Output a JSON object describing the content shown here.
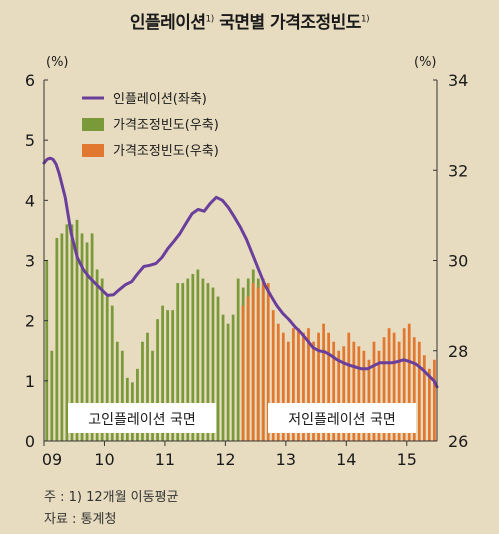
{
  "title": "인플레이션",
  "title_sup1": "1)",
  "title_part2": " 국면별 가격조정빈도",
  "title_sup2": "1)",
  "notes": [
    "주 : 1) 12개월 이동평균",
    "자료 : 통계청"
  ],
  "colors": {
    "line": "#6a3f9b",
    "bar_high": "#7a9a3a",
    "bar_low": "#e2782f",
    "background": "#e8dcc0",
    "box": "#ffffff"
  },
  "chart_data": {
    "type": "bar+line",
    "left_axis": {
      "unit": "(%)",
      "ylim": [
        0,
        6
      ],
      "ticks": [
        "0",
        "1",
        "2",
        "3",
        "4",
        "5",
        "6"
      ]
    },
    "right_axis": {
      "unit": "(%)",
      "ylim": [
        26,
        34
      ],
      "ticks": [
        "26",
        "28",
        "30",
        "32",
        "34"
      ]
    },
    "x_ticks": [
      "09",
      "10",
      "11",
      "12",
      "13",
      "14",
      "15"
    ],
    "x_range": [
      2009.0,
      2015.5
    ],
    "legend": [
      "인플레이션(좌축)",
      "가격조정빈도(우축)",
      "가격조정빈도(우축)"
    ],
    "regime_labels": [
      "고인플레이션 국면",
      "저인플레이션 국면"
    ],
    "regime_split": 2012.25,
    "bar_start": 2009.0,
    "bar_step": 0.0833,
    "freq_high": [
      30.0,
      28.0,
      30.5,
      30.6,
      30.8,
      30.8,
      30.9,
      30.6,
      30.4,
      30.6,
      29.8,
      29.6,
      29.2,
      29.0,
      28.2,
      28.0,
      27.4,
      27.3,
      27.6,
      28.2,
      28.4,
      28.0,
      28.7,
      29.0,
      28.9,
      28.9,
      29.5,
      29.5,
      29.6,
      29.7,
      29.8,
      29.6,
      29.5,
      29.4,
      29.2,
      28.8,
      28.6,
      28.8,
      29.6,
      29.4,
      29.6,
      29.8,
      29.6,
      29.4
    ],
    "freq_low": [
      29.0,
      29.2,
      29.5,
      29.4,
      29.6,
      29.5,
      28.9,
      28.6,
      28.4,
      28.2,
      28.5,
      28.5,
      28.4,
      28.5,
      28.2,
      28.4,
      28.6,
      28.4,
      28.2,
      28.0,
      28.1,
      28.4,
      28.2,
      28.1,
      28.0,
      27.8,
      28.2,
      28.0,
      28.3,
      28.5,
      28.4,
      28.2,
      28.5,
      28.6,
      28.3,
      28.2,
      27.9,
      27.6,
      27.8,
      27.5,
      27.4,
      27.6,
      27.2,
      27.8,
      27.6,
      27.4,
      27.5
    ],
    "inflation": {
      "x": [
        2009.0,
        2009.05,
        2009.1,
        2009.15,
        2009.2,
        2009.25,
        2009.35,
        2009.45,
        2009.55,
        2009.65,
        2009.75,
        2009.85,
        2009.95,
        2010.05,
        2010.15,
        2010.25,
        2010.35,
        2010.45,
        2010.55,
        2010.65,
        2010.75,
        2010.85,
        2010.95,
        2011.05,
        2011.15,
        2011.25,
        2011.35,
        2011.45,
        2011.55,
        2011.65,
        2011.75,
        2011.85,
        2011.95,
        2012.05,
        2012.15,
        2012.25,
        2012.35,
        2012.45,
        2012.55,
        2012.65,
        2012.75,
        2012.85,
        2012.95,
        2013.05,
        2013.15,
        2013.25,
        2013.35,
        2013.45,
        2013.55,
        2013.65,
        2013.75,
        2013.85,
        2013.95,
        2014.05,
        2014.15,
        2014.25,
        2014.35,
        2014.45,
        2014.55,
        2014.65,
        2014.75,
        2014.85,
        2014.95,
        2015.05,
        2015.15,
        2015.25,
        2015.35,
        2015.45,
        2015.5
      ],
      "y": [
        4.62,
        4.68,
        4.7,
        4.68,
        4.6,
        4.45,
        4.05,
        3.45,
        3.05,
        2.85,
        2.72,
        2.62,
        2.52,
        2.42,
        2.43,
        2.52,
        2.6,
        2.65,
        2.78,
        2.9,
        2.92,
        2.95,
        3.05,
        3.2,
        3.32,
        3.45,
        3.62,
        3.78,
        3.85,
        3.82,
        3.95,
        4.05,
        4.0,
        3.88,
        3.72,
        3.55,
        3.35,
        3.1,
        2.85,
        2.6,
        2.42,
        2.25,
        2.12,
        2.02,
        1.9,
        1.8,
        1.68,
        1.55,
        1.5,
        1.48,
        1.42,
        1.35,
        1.3,
        1.26,
        1.23,
        1.2,
        1.2,
        1.25,
        1.3,
        1.3,
        1.3,
        1.32,
        1.35,
        1.32,
        1.28,
        1.2,
        1.1,
        1.0,
        0.9
      ]
    }
  }
}
